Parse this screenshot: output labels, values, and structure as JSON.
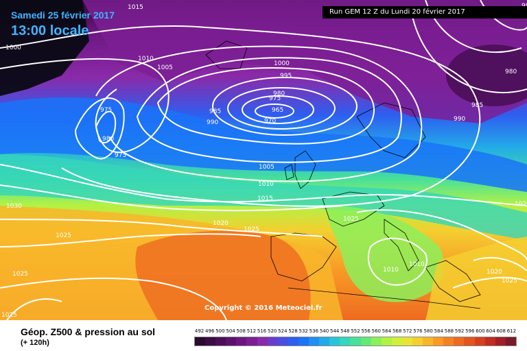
{
  "header": {
    "date": "Samedi 25 février 2017",
    "time": "13:00 locale",
    "run": "Run GEM 12 Z du Lundi 20 février 2017"
  },
  "copyright": "Copyright © 2016 Meteociel.fr",
  "footer": {
    "title": "Géop. Z500 & pression au sol",
    "subtitle": "(+ 120h)"
  },
  "scale": {
    "values": [
      "492",
      "496",
      "500",
      "504",
      "508",
      "512",
      "516",
      "520",
      "524",
      "528",
      "532",
      "536",
      "540",
      "544",
      "548",
      "552",
      "556",
      "560",
      "564",
      "568",
      "572",
      "576",
      "580",
      "584",
      "588",
      "592",
      "596",
      "600",
      "604",
      "608",
      "612"
    ],
    "colors": [
      "#2a0a30",
      "#3a0c44",
      "#4a0e58",
      "#5b126c",
      "#6c1780",
      "#7d1e94",
      "#8a2aa8",
      "#6a3ccc",
      "#4a4ee0",
      "#2e5ef0",
      "#1a73f8",
      "#1e90f2",
      "#22abe8",
      "#2ac4d8",
      "#34d6bc",
      "#48e09a",
      "#66e878",
      "#8cf05a",
      "#b2f244",
      "#d0f03a",
      "#e8e436",
      "#f4cf30",
      "#f8b62a",
      "#f89c26",
      "#f48222",
      "#ee6a20",
      "#e4541e",
      "#d63f1e",
      "#c02c22",
      "#a01e26",
      "#7a1a2a"
    ]
  },
  "map": {
    "colors": {
      "ocean_deep": "#0a0a14",
      "purple": "#8a1ea8",
      "blue": "#1f6ff5",
      "cyan": "#2ac4d8",
      "green": "#8cf05a",
      "yellow": "#f4d230",
      "orange": "#f08a22"
    },
    "isobar_labels": [
      "1015",
      "995",
      "1000",
      "1010",
      "1005",
      "1000",
      "995",
      "980",
      "975",
      "975",
      "965",
      "970",
      "985",
      "990",
      "980",
      "975",
      "985",
      "990",
      "1005",
      "1010",
      "1015",
      "1030",
      "1020",
      "1025",
      "1025",
      "1025",
      "1025",
      "1010",
      "1010",
      "1020",
      "1025",
      "1025",
      "1025",
      "980"
    ]
  }
}
